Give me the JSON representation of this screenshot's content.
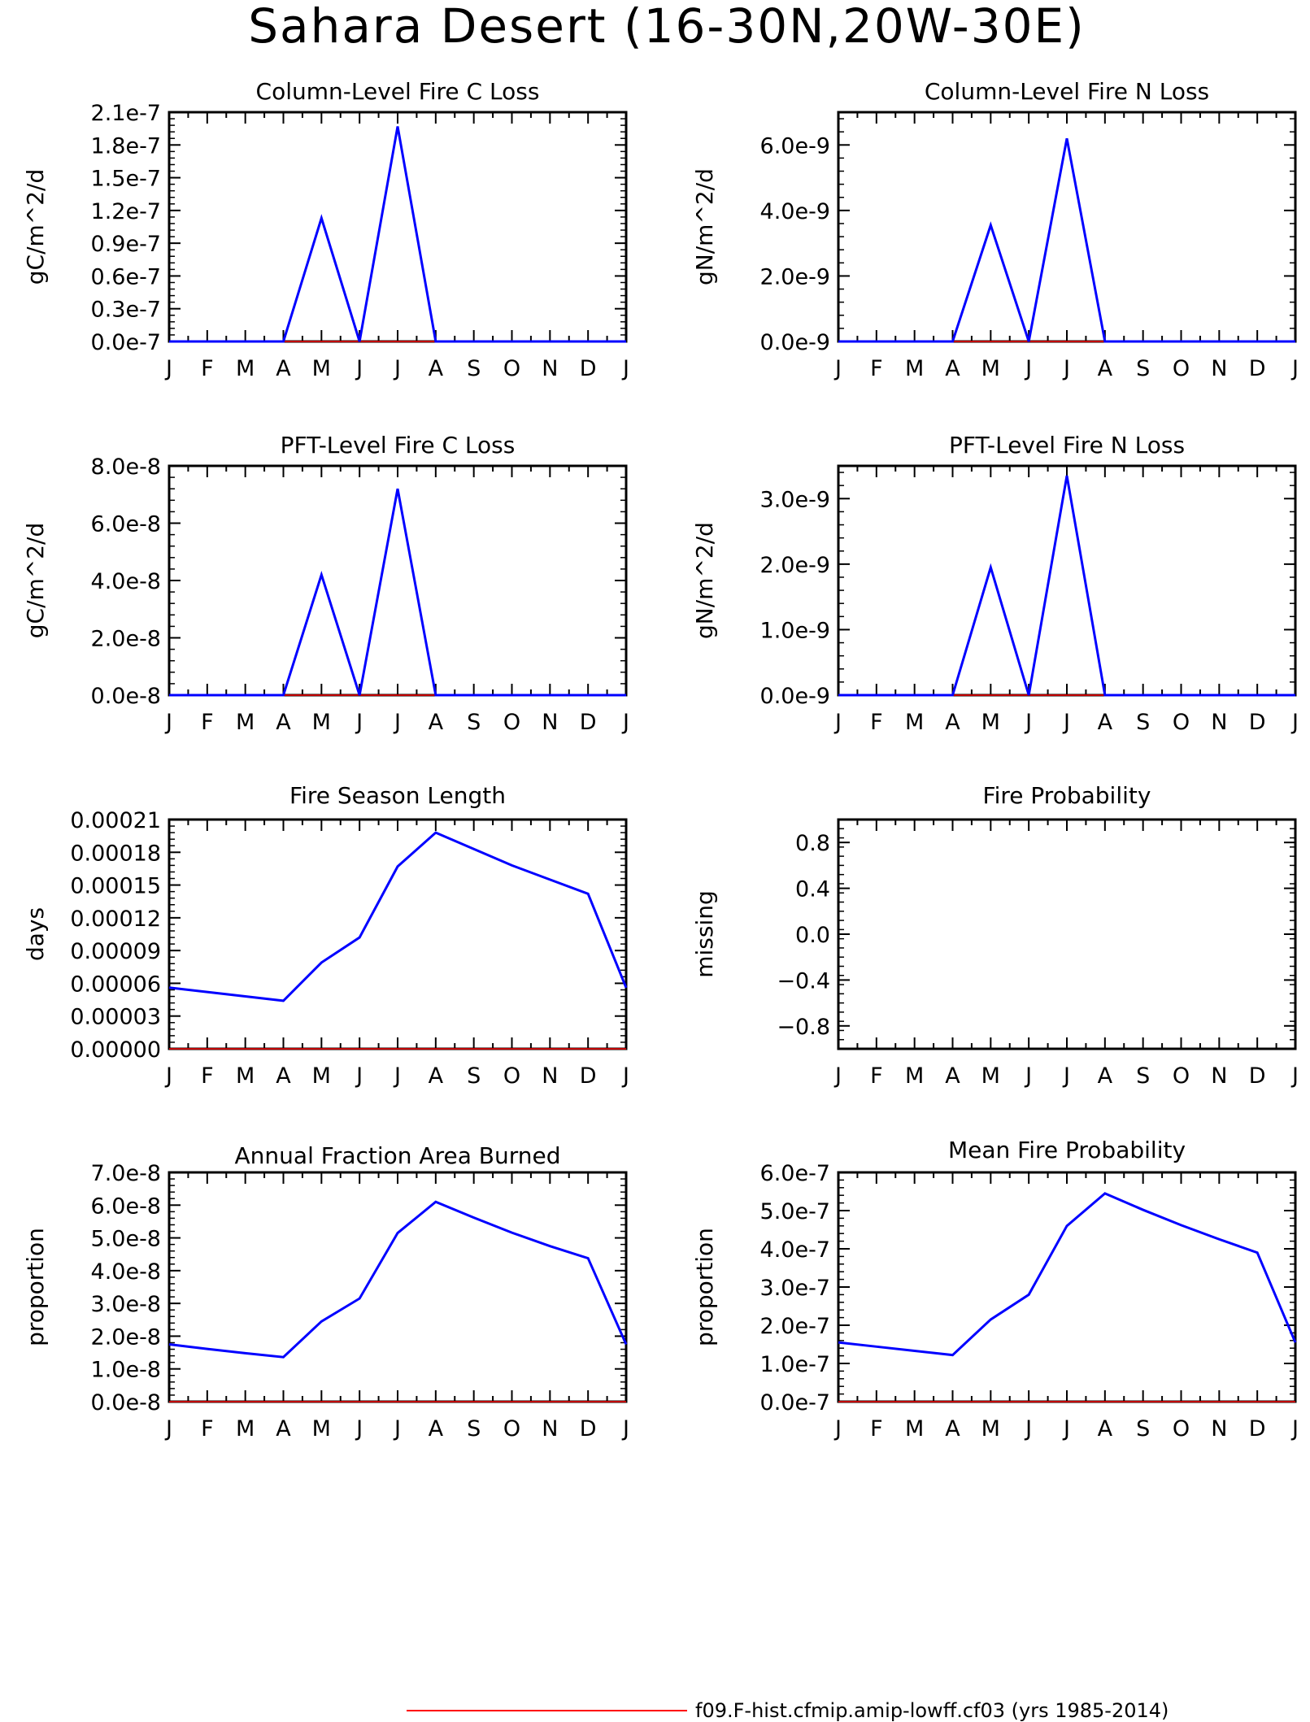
{
  "title": "Sahara Desert (16-30N,20W-30E)",
  "legend": {
    "label": "f09.F-hist.cfmip.amip-lowff.cf03 (yrs 1985-2014)",
    "color": "#ff0000"
  },
  "colors": {
    "data_line": "#0000ff",
    "zero_line": "#ff0000",
    "axis": "#000000"
  },
  "chart_data": [
    {
      "type": "line",
      "title": "Column-Level Fire C Loss",
      "ylabel": "gC/m^2/d",
      "categories": [
        "J",
        "F",
        "M",
        "A",
        "M",
        "J",
        "J",
        "A",
        "S",
        "O",
        "N",
        "D",
        "J"
      ],
      "ylim": [
        0,
        2.1e-07
      ],
      "yticks": [
        0,
        3e-08,
        6e-08,
        9e-08,
        1.2e-07,
        1.5e-07,
        1.8e-07,
        2.1e-07
      ],
      "ytick_labels": [
        "0.0e-7",
        "0.3e-7",
        "0.6e-7",
        "0.9e-7",
        "1.2e-7",
        "1.5e-7",
        "1.8e-7",
        "2.1e-7"
      ],
      "series": [
        {
          "values": [
            0,
            0,
            0,
            0,
            1.13e-07,
            0,
            1.97e-07,
            0,
            0,
            0,
            0,
            0,
            0
          ]
        }
      ]
    },
    {
      "type": "line",
      "title": "Column-Level Fire N Loss",
      "ylabel": "gN/m^2/d",
      "categories": [
        "J",
        "F",
        "M",
        "A",
        "M",
        "J",
        "J",
        "A",
        "S",
        "O",
        "N",
        "D",
        "J"
      ],
      "ylim": [
        0,
        7e-09
      ],
      "yticks": [
        0,
        2e-09,
        4e-09,
        6e-09
      ],
      "ytick_labels": [
        "0.0e-9",
        "2.0e-9",
        "4.0e-9",
        "6.0e-9"
      ],
      "series": [
        {
          "values": [
            0,
            0,
            0,
            0,
            3.55e-09,
            0,
            6.2e-09,
            0,
            0,
            0,
            0,
            0,
            0
          ]
        }
      ]
    },
    {
      "type": "line",
      "title": "PFT-Level Fire C Loss",
      "ylabel": "gC/m^2/d",
      "categories": [
        "J",
        "F",
        "M",
        "A",
        "M",
        "J",
        "J",
        "A",
        "S",
        "O",
        "N",
        "D",
        "J"
      ],
      "ylim": [
        0,
        8e-08
      ],
      "yticks": [
        0,
        2e-08,
        4e-08,
        6e-08,
        8e-08
      ],
      "ytick_labels": [
        "0.0e-8",
        "2.0e-8",
        "4.0e-8",
        "6.0e-8",
        "8.0e-8"
      ],
      "series": [
        {
          "values": [
            0,
            0,
            0,
            0,
            4.2e-08,
            0,
            7.2e-08,
            0,
            0,
            0,
            0,
            0,
            0
          ]
        }
      ]
    },
    {
      "type": "line",
      "title": "PFT-Level Fire N Loss",
      "ylabel": "gN/m^2/d",
      "categories": [
        "J",
        "F",
        "M",
        "A",
        "M",
        "J",
        "J",
        "A",
        "S",
        "O",
        "N",
        "D",
        "J"
      ],
      "ylim": [
        0,
        3.5e-09
      ],
      "yticks": [
        0,
        1e-09,
        2e-09,
        3e-09
      ],
      "ytick_labels": [
        "0.0e-9",
        "1.0e-9",
        "2.0e-9",
        "3.0e-9"
      ],
      "series": [
        {
          "values": [
            0,
            0,
            0,
            0,
            1.95e-09,
            0,
            3.35e-09,
            0,
            0,
            0,
            0,
            0,
            0
          ]
        }
      ]
    },
    {
      "type": "line",
      "title": "Fire Season Length",
      "ylabel": "days",
      "categories": [
        "J",
        "F",
        "M",
        "A",
        "M",
        "J",
        "J",
        "A",
        "S",
        "O",
        "N",
        "D",
        "J"
      ],
      "ylim": [
        0,
        0.00021
      ],
      "yticks": [
        0,
        3e-05,
        6e-05,
        9e-05,
        0.00012,
        0.00015,
        0.00018,
        0.00021
      ],
      "ytick_labels": [
        "0.00000",
        "0.00003",
        "0.00006",
        "0.00009",
        "0.00012",
        "0.00015",
        "0.00018",
        "0.00021"
      ],
      "series": [
        {
          "values": [
            5.6e-05,
            5.2e-05,
            4.8e-05,
            4.4e-05,
            7.9e-05,
            0.000102,
            0.000167,
            0.000198,
            0.000183,
            0.000168,
            0.000155,
            0.000142,
            5.6e-05
          ]
        }
      ]
    },
    {
      "type": "line",
      "title": "Fire Probability",
      "ylabel": "missing",
      "categories": [
        "J",
        "F",
        "M",
        "A",
        "M",
        "J",
        "J",
        "A",
        "S",
        "O",
        "N",
        "D",
        "J"
      ],
      "ylim": [
        -1,
        1
      ],
      "yticks": [
        -0.8,
        -0.4,
        0.0,
        0.4,
        0.8
      ],
      "ytick_labels": [
        "−0.8",
        "−0.4",
        "0.0",
        "0.4",
        "0.8"
      ],
      "series": []
    },
    {
      "type": "line",
      "title": "Annual Fraction Area Burned",
      "ylabel": "proportion",
      "categories": [
        "J",
        "F",
        "M",
        "A",
        "M",
        "J",
        "J",
        "A",
        "S",
        "O",
        "N",
        "D",
        "J"
      ],
      "ylim": [
        0,
        7e-08
      ],
      "yticks": [
        0,
        1e-08,
        2e-08,
        3e-08,
        4e-08,
        5e-08,
        6e-08,
        7e-08
      ],
      "ytick_labels": [
        "0.0e-8",
        "1.0e-8",
        "2.0e-8",
        "3.0e-8",
        "4.0e-8",
        "5.0e-8",
        "6.0e-8",
        "7.0e-8"
      ],
      "series": [
        {
          "values": [
            1.75e-08,
            1.61e-08,
            1.48e-08,
            1.36e-08,
            2.45e-08,
            3.15e-08,
            5.15e-08,
            6.1e-08,
            5.62e-08,
            5.16e-08,
            4.75e-08,
            4.38e-08,
            1.75e-08
          ]
        }
      ]
    },
    {
      "type": "line",
      "title": "Mean Fire Probability",
      "ylabel": "proportion",
      "categories": [
        "J",
        "F",
        "M",
        "A",
        "M",
        "J",
        "J",
        "A",
        "S",
        "O",
        "N",
        "D",
        "J"
      ],
      "ylim": [
        0,
        6e-07
      ],
      "yticks": [
        0,
        1e-07,
        2e-07,
        3e-07,
        4e-07,
        5e-07,
        6e-07
      ],
      "ytick_labels": [
        "0.0e-7",
        "1.0e-7",
        "2.0e-7",
        "3.0e-7",
        "4.0e-7",
        "5.0e-7",
        "6.0e-7"
      ],
      "series": [
        {
          "values": [
            1.55e-07,
            1.44e-07,
            1.33e-07,
            1.22e-07,
            2.15e-07,
            2.8e-07,
            4.6e-07,
            5.45e-07,
            5.02e-07,
            4.62e-07,
            4.25e-07,
            3.9e-07,
            1.55e-07
          ]
        }
      ]
    }
  ]
}
